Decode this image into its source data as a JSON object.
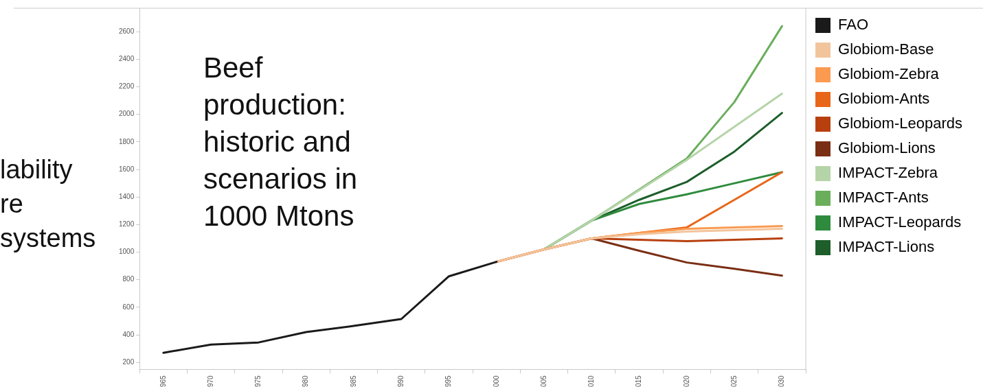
{
  "chart_data": {
    "type": "line",
    "title": "Beef production: historic and scenarios in 1000 Mtons",
    "annotations": [
      "lability",
      "re",
      "systems"
    ],
    "categories": [
      "965",
      "970",
      "975",
      "980",
      "985",
      "990",
      "995",
      "000",
      "005",
      "010",
      "015",
      "020",
      "025",
      "030"
    ],
    "ylim": [
      150,
      2770
    ],
    "yticks": [
      200,
      400,
      600,
      800,
      1000,
      1200,
      1400,
      1600,
      1800,
      2000,
      2200,
      2400,
      2600
    ],
    "grid": false,
    "legend": "right",
    "marker": "none",
    "line_style": "solid",
    "series": [
      {
        "name": "FAO",
        "color": "#1a1a1a",
        "values": [
          270,
          330,
          345,
          420,
          465,
          515,
          825,
          930,
          null,
          null,
          null,
          null,
          null,
          null
        ]
      },
      {
        "name": "Globiom-Base",
        "color": "#f2c49c",
        "values": [
          null,
          null,
          null,
          null,
          null,
          null,
          null,
          930,
          1020,
          1100,
          1130,
          1150,
          1160,
          1170
        ]
      },
      {
        "name": "Globiom-Zebra",
        "color": "#fb9a50",
        "values": [
          null,
          null,
          null,
          null,
          null,
          null,
          null,
          930,
          1020,
          1100,
          1140,
          1170,
          1180,
          1190
        ]
      },
      {
        "name": "Globiom-Ants",
        "color": "#e8661a",
        "values": [
          null,
          null,
          null,
          null,
          null,
          null,
          null,
          930,
          1020,
          1100,
          1140,
          1180,
          1380,
          1580
        ]
      },
      {
        "name": "Globiom-Leopards",
        "color": "#b8400f",
        "values": [
          null,
          null,
          null,
          null,
          null,
          null,
          null,
          930,
          1020,
          1100,
          1090,
          1080,
          1090,
          1100
        ]
      },
      {
        "name": "Globiom-Lions",
        "color": "#7a2e14",
        "values": [
          null,
          null,
          null,
          null,
          null,
          null,
          null,
          930,
          1020,
          1100,
          1010,
          925,
          880,
          830
        ]
      },
      {
        "name": "IMPACT-Zebra",
        "color": "#b5d4a8",
        "values": [
          null,
          null,
          null,
          null,
          null,
          null,
          null,
          null,
          1020,
          1230,
          1450,
          1670,
          1910,
          2150
        ]
      },
      {
        "name": "IMPACT-Ants",
        "color": "#6aae5c",
        "values": [
          null,
          null,
          null,
          null,
          null,
          null,
          null,
          null,
          1020,
          1230,
          1455,
          1680,
          2090,
          2640
        ]
      },
      {
        "name": "IMPACT-Leopards",
        "color": "#2e8b3e",
        "values": [
          null,
          null,
          null,
          null,
          null,
          null,
          null,
          null,
          1020,
          1230,
          1350,
          1420,
          1500,
          1580
        ]
      },
      {
        "name": "IMPACT-Lions",
        "color": "#1d5e2a",
        "values": [
          null,
          null,
          null,
          null,
          null,
          null,
          null,
          null,
          1020,
          1230,
          1380,
          1510,
          1730,
          2010
        ]
      }
    ]
  }
}
